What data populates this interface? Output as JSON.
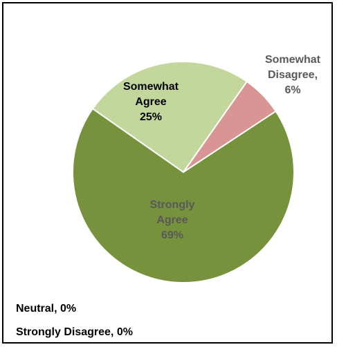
{
  "chart_data": {
    "type": "pie",
    "slices": [
      {
        "name": "Somewhat Disagree",
        "value": 6,
        "label_lines": [
          "Somewhat",
          "Disagree,",
          "6%"
        ],
        "color": "#d99594",
        "label_color": "#595959"
      },
      {
        "name": "Strongly Agree",
        "value": 69,
        "label_lines": [
          "Strongly",
          "Agree",
          "69%"
        ],
        "color": "#76923c",
        "label_color": "#595959"
      },
      {
        "name": "Somewhat Agree",
        "value": 25,
        "label_lines": [
          "Somewhat",
          "Agree",
          "25%"
        ],
        "color": "#c3d69b",
        "label_color": "#000000"
      },
      {
        "name": "Neutral",
        "value": 0,
        "label_lines": [
          "Neutral, 0%"
        ],
        "color": "#ffffff",
        "label_color": "#000000"
      },
      {
        "name": "Strongly Disagree",
        "value": 0,
        "label_lines": [
          "Strongly Disagree, 0%"
        ],
        "color": "#ffffff",
        "label_color": "#000000"
      }
    ],
    "slice_border_color": "#ffffff"
  }
}
